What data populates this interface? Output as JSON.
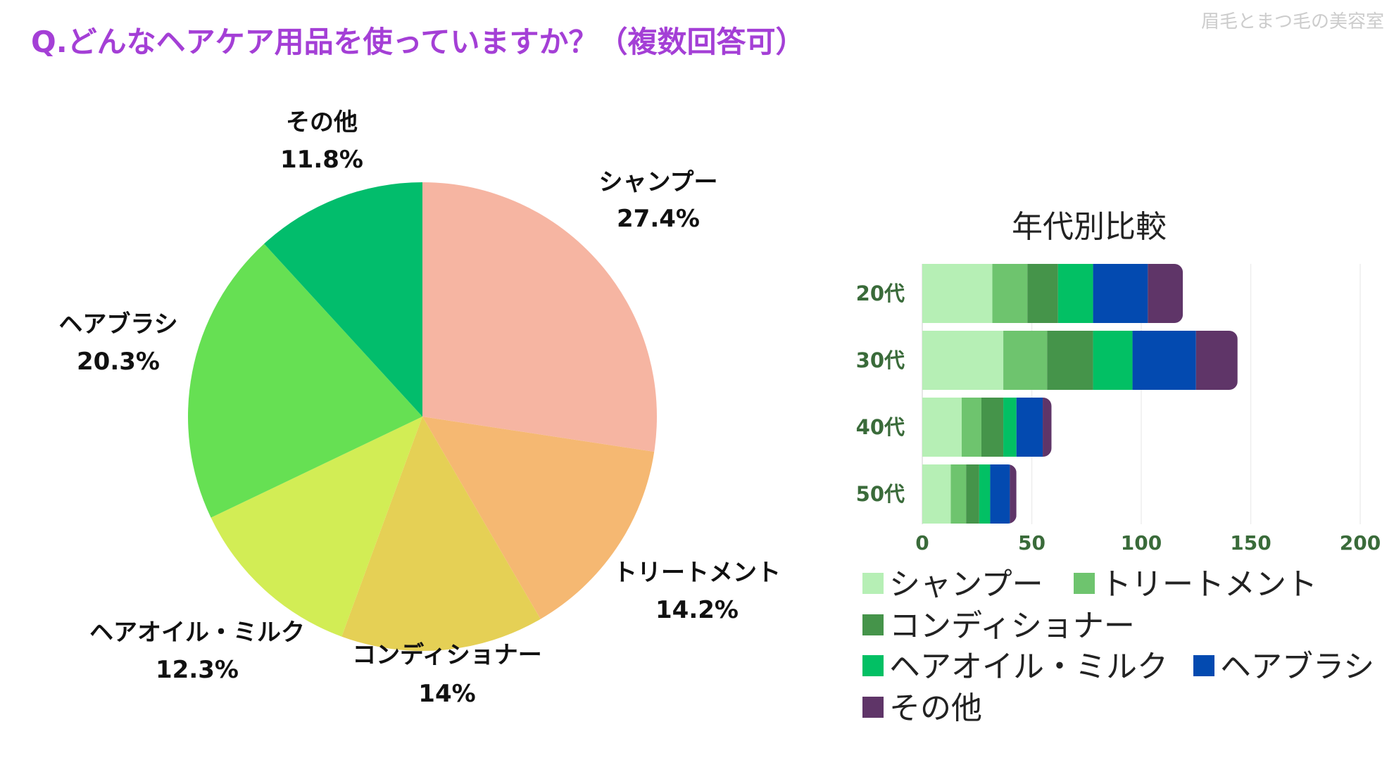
{
  "title": "Q.どんなヘアケア用品を使っていますか？（複数回答可）",
  "watermark": "眉毛とまつ毛の美容室",
  "chart_data": [
    {
      "type": "pie",
      "title": "",
      "slices": [
        {
          "label": "シャンプー",
          "value": 27.4,
          "display": "27.4%",
          "color": "#f6b5a2"
        },
        {
          "label": "トリートメント",
          "value": 14.2,
          "display": "14.2%",
          "color": "#f5b872"
        },
        {
          "label": "コンディショナー",
          "value": 14,
          "display": "14%",
          "color": "#e5d055"
        },
        {
          "label": "ヘアオイル・ミルク",
          "value": 12.3,
          "display": "12.3%",
          "color": "#d2ed55"
        },
        {
          "label": "ヘアブラシ",
          "value": 20.3,
          "display": "20.3%",
          "color": "#66e053"
        },
        {
          "label": "その他",
          "value": 11.8,
          "display": "11.8%",
          "color": "#02bd6c"
        }
      ]
    },
    {
      "type": "bar",
      "orientation": "horizontal",
      "stacked": true,
      "title": "年代別比較",
      "categories": [
        "20代",
        "30代",
        "40代",
        "50代"
      ],
      "xlim": [
        0,
        200
      ],
      "xticks": [
        0,
        50,
        100,
        150,
        200
      ],
      "series": [
        {
          "name": "シャンプー",
          "color": "#b6efb5",
          "values": [
            32,
            37,
            18,
            13
          ]
        },
        {
          "name": "トリートメント",
          "color": "#6ec46e",
          "values": [
            16,
            20,
            9,
            7
          ]
        },
        {
          "name": "コンディショナー",
          "color": "#45944a",
          "values": [
            14,
            21,
            10,
            6
          ]
        },
        {
          "name": "ヘアオイル・ミルク",
          "color": "#02c064",
          "values": [
            16,
            18,
            6,
            5
          ]
        },
        {
          "name": "ヘアブラシ",
          "color": "#034ab0",
          "values": [
            25,
            29,
            12,
            9
          ]
        },
        {
          "name": "その他",
          "color": "#5f3568",
          "values": [
            16,
            19,
            4,
            3
          ]
        }
      ]
    }
  ]
}
